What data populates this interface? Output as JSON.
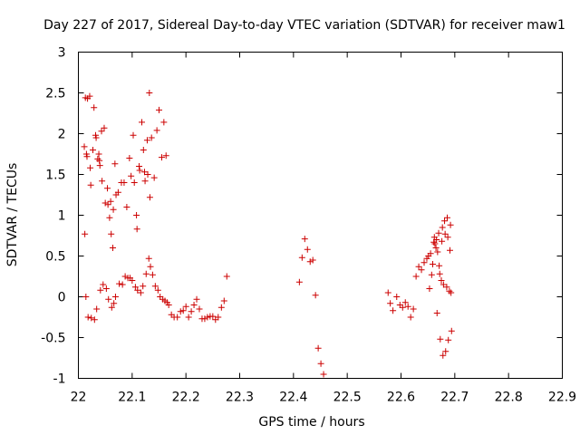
{
  "chart_data": {
    "type": "scatter",
    "title": "Day 227 of 2017, Sidereal Day-to-day VTEC variation (SDTVAR) for receiver maw1",
    "xlabel": "GPS time / hours",
    "ylabel": "SDTVAR / TECUs",
    "xlim": [
      22,
      22.9
    ],
    "ylim": [
      -1,
      3
    ],
    "x_ticks": [
      22,
      22.1,
      22.2,
      22.3,
      22.4,
      22.5,
      22.6,
      22.7,
      22.8,
      22.9
    ],
    "x_tick_labels": [
      "22",
      "22.1",
      "22.2",
      "22.3",
      "22.4",
      "22.5",
      "22.6",
      "22.7",
      "22.8",
      "22.9"
    ],
    "y_ticks": [
      -1,
      -0.5,
      0,
      0.5,
      1,
      1.5,
      2,
      2.5,
      3
    ],
    "y_tick_labels": [
      "-1",
      "-0.5",
      "0",
      "0.5",
      "1",
      "1.5",
      "2",
      "2.5",
      "3"
    ],
    "grid": false,
    "marker": "+",
    "series": [
      {
        "name": "SDTVAR",
        "color": "#cc0000",
        "points": [
          [
            22.011,
            1.84
          ],
          [
            22.012,
            0.77
          ],
          [
            22.013,
            2.44
          ],
          [
            22.014,
            0.0
          ],
          [
            22.015,
            1.75
          ],
          [
            22.016,
            1.72
          ],
          [
            22.017,
            2.43
          ],
          [
            22.018,
            -0.25
          ],
          [
            22.021,
            2.46
          ],
          [
            22.022,
            1.58
          ],
          [
            22.023,
            1.37
          ],
          [
            22.024,
            -0.26
          ],
          [
            22.027,
            1.8
          ],
          [
            22.029,
            2.32
          ],
          [
            22.03,
            -0.28
          ],
          [
            22.032,
            1.98
          ],
          [
            22.033,
            1.95
          ],
          [
            22.034,
            -0.15
          ],
          [
            22.036,
            1.69
          ],
          [
            22.038,
            1.75
          ],
          [
            22.039,
            1.67
          ],
          [
            22.04,
            1.61
          ],
          [
            22.041,
            0.08
          ],
          [
            22.043,
            2.03
          ],
          [
            22.044,
            1.42
          ],
          [
            22.046,
            0.15
          ],
          [
            22.048,
            2.07
          ],
          [
            22.05,
            1.15
          ],
          [
            22.052,
            0.1
          ],
          [
            22.054,
            1.33
          ],
          [
            22.055,
            1.13
          ],
          [
            22.056,
            -0.03
          ],
          [
            22.058,
            0.97
          ],
          [
            22.06,
            1.17
          ],
          [
            22.061,
            0.77
          ],
          [
            22.062,
            -0.13
          ],
          [
            22.064,
            0.6
          ],
          [
            22.065,
            1.07
          ],
          [
            22.066,
            -0.08
          ],
          [
            22.068,
            1.63
          ],
          [
            22.069,
            0.0
          ],
          [
            22.07,
            1.25
          ],
          [
            22.074,
            1.28
          ],
          [
            22.076,
            0.16
          ],
          [
            22.08,
            1.4
          ],
          [
            22.082,
            0.15
          ],
          [
            22.085,
            1.4
          ],
          [
            22.087,
            0.25
          ],
          [
            22.09,
            1.1
          ],
          [
            22.092,
            0.23
          ],
          [
            22.095,
            1.7
          ],
          [
            22.096,
            0.23
          ],
          [
            22.098,
            1.48
          ],
          [
            22.1,
            0.2
          ],
          [
            22.102,
            1.98
          ],
          [
            22.104,
            1.4
          ],
          [
            22.106,
            0.12
          ],
          [
            22.108,
            1.0
          ],
          [
            22.109,
            0.83
          ],
          [
            22.11,
            0.08
          ],
          [
            22.113,
            1.6
          ],
          [
            22.114,
            1.55
          ],
          [
            22.116,
            0.05
          ],
          [
            22.118,
            2.14
          ],
          [
            22.12,
            0.13
          ],
          [
            22.121,
            1.8
          ],
          [
            22.123,
            1.53
          ],
          [
            22.124,
            1.42
          ],
          [
            22.126,
            0.28
          ],
          [
            22.128,
            1.92
          ],
          [
            22.129,
            1.5
          ],
          [
            22.131,
            0.47
          ],
          [
            22.132,
            2.5
          ],
          [
            22.133,
            1.22
          ],
          [
            22.134,
            0.37
          ],
          [
            22.136,
            1.95
          ],
          [
            22.138,
            0.27
          ],
          [
            22.141,
            1.46
          ],
          [
            22.143,
            0.13
          ],
          [
            22.146,
            2.04
          ],
          [
            22.148,
            0.08
          ],
          [
            22.15,
            2.29
          ],
          [
            22.152,
            0.0
          ],
          [
            22.155,
            1.71
          ],
          [
            22.157,
            -0.03
          ],
          [
            22.159,
            2.14
          ],
          [
            22.161,
            -0.05
          ],
          [
            22.163,
            1.73
          ],
          [
            22.165,
            -0.07
          ],
          [
            22.168,
            -0.1
          ],
          [
            22.173,
            -0.22
          ],
          [
            22.178,
            -0.25
          ],
          [
            22.184,
            -0.25
          ],
          [
            22.19,
            -0.18
          ],
          [
            22.195,
            -0.17
          ],
          [
            22.2,
            -0.12
          ],
          [
            22.205,
            -0.25
          ],
          [
            22.21,
            -0.18
          ],
          [
            22.215,
            -0.1
          ],
          [
            22.22,
            -0.03
          ],
          [
            22.225,
            -0.15
          ],
          [
            22.23,
            -0.27
          ],
          [
            22.235,
            -0.27
          ],
          [
            22.24,
            -0.25
          ],
          [
            22.245,
            -0.24
          ],
          [
            22.25,
            -0.24
          ],
          [
            22.255,
            -0.28
          ],
          [
            22.26,
            -0.25
          ],
          [
            22.266,
            -0.13
          ],
          [
            22.271,
            -0.05
          ],
          [
            22.276,
            0.25
          ],
          [
            22.411,
            0.18
          ],
          [
            22.416,
            0.48
          ],
          [
            22.421,
            0.71
          ],
          [
            22.426,
            0.58
          ],
          [
            22.431,
            0.43
          ],
          [
            22.436,
            0.45
          ],
          [
            22.441,
            0.02
          ],
          [
            22.446,
            -0.63
          ],
          [
            22.451,
            -0.82
          ],
          [
            22.456,
            -0.95
          ],
          [
            22.576,
            0.05
          ],
          [
            22.58,
            -0.08
          ],
          [
            22.585,
            -0.17
          ],
          [
            22.592,
            0.0
          ],
          [
            22.598,
            -0.1
          ],
          [
            22.603,
            -0.13
          ],
          [
            22.608,
            -0.07
          ],
          [
            22.613,
            -0.12
          ],
          [
            22.618,
            -0.25
          ],
          [
            22.623,
            -0.15
          ],
          [
            22.628,
            0.25
          ],
          [
            22.633,
            0.37
          ],
          [
            22.638,
            0.33
          ],
          [
            22.643,
            0.42
          ],
          [
            22.648,
            0.47
          ],
          [
            22.651,
            0.5
          ],
          [
            22.653,
            0.1
          ],
          [
            22.655,
            0.53
          ],
          [
            22.657,
            0.27
          ],
          [
            22.659,
            0.4
          ],
          [
            22.661,
            0.67
          ],
          [
            22.662,
            0.73
          ],
          [
            22.663,
            0.65
          ],
          [
            22.665,
            0.6
          ],
          [
            22.666,
            0.7
          ],
          [
            22.667,
            -0.2
          ],
          [
            22.668,
            0.55
          ],
          [
            22.67,
            0.78
          ],
          [
            22.671,
            0.38
          ],
          [
            22.672,
            0.28
          ],
          [
            22.673,
            -0.52
          ],
          [
            22.675,
            0.2
          ],
          [
            22.676,
            0.68
          ],
          [
            22.677,
            0.85
          ],
          [
            22.678,
            -0.72
          ],
          [
            22.679,
            0.15
          ],
          [
            22.681,
            0.93
          ],
          [
            22.682,
            0.77
          ],
          [
            22.683,
            -0.67
          ],
          [
            22.685,
            0.12
          ],
          [
            22.686,
            0.97
          ],
          [
            22.687,
            0.73
          ],
          [
            22.688,
            -0.53
          ],
          [
            22.69,
            0.07
          ],
          [
            22.691,
            0.57
          ],
          [
            22.692,
            0.88
          ],
          [
            22.693,
            0.05
          ],
          [
            22.694,
            -0.42
          ]
        ]
      }
    ]
  }
}
